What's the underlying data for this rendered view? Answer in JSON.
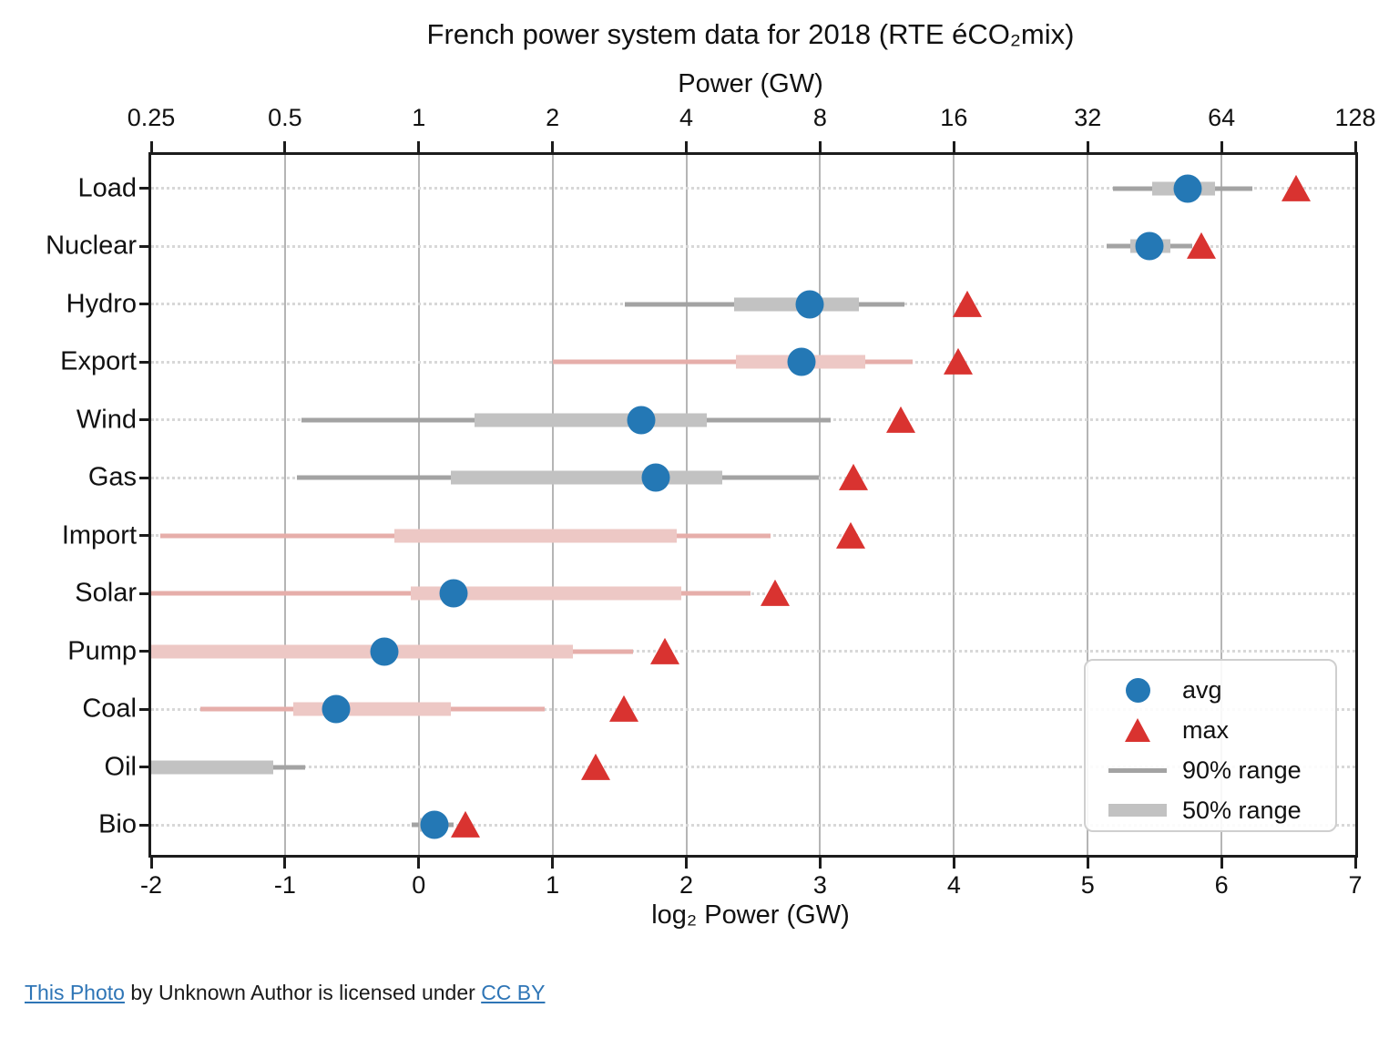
{
  "colors": {
    "avg_blue": "#2478b5",
    "max_red": "#d93330",
    "gray_thin": "#a3a3a3",
    "gray_thick": "#c2c2c2",
    "pink_thin": "#e6aeaa",
    "pink_thick": "#edc8c5",
    "grid_vertical": "#b5b5b5",
    "grid_horizontal_dotted": "#d8d8d8",
    "link_blue": "#2e75b6"
  },
  "chart_data": {
    "type": "scatter",
    "title": "French power system data for 2018 (RTE éCO₂mix)",
    "subtitle": "",
    "x_axis": {
      "label_top": "Power (GW)",
      "label_bottom": "log₂ Power (GW)",
      "scale": "log2",
      "min": -2,
      "max": 7,
      "tick_positions_log2": [
        -2,
        -1,
        0,
        1,
        2,
        3,
        4,
        5,
        6,
        7
      ],
      "tick_labels_bottom": [
        "-2",
        "-1",
        "0",
        "1",
        "2",
        "3",
        "4",
        "5",
        "6",
        "7"
      ],
      "tick_labels_top": [
        "0.25",
        "0.5",
        "1",
        "2",
        "4",
        "8",
        "16",
        "32",
        "64",
        "128"
      ],
      "grid": "vertical solid at integers, horizontal dotted per category"
    },
    "categories": [
      "Load",
      "Nuclear",
      "Hydro",
      "Export",
      "Wind",
      "Gas",
      "Import",
      "Solar",
      "Pump",
      "Coal",
      "Oil",
      "Bio"
    ],
    "rows": [
      {
        "category": "Load",
        "range_color": "gray",
        "p5": 5.19,
        "p25": 5.48,
        "p75": 5.95,
        "p95": 6.23,
        "avg": 5.75,
        "max": 6.56,
        "avg_gw": 53.8,
        "max_gw": 94.4
      },
      {
        "category": "Nuclear",
        "range_color": "gray",
        "p5": 5.14,
        "p25": 5.32,
        "p75": 5.62,
        "p95": 5.78,
        "avg": 5.46,
        "max": 5.85,
        "avg_gw": 44.0,
        "max_gw": 57.7
      },
      {
        "category": "Hydro",
        "range_color": "gray",
        "p5": 1.54,
        "p25": 2.36,
        "p75": 3.29,
        "p95": 3.63,
        "avg": 2.92,
        "max": 4.1,
        "avg_gw": 7.6,
        "max_gw": 17.1
      },
      {
        "category": "Export",
        "range_color": "pink",
        "p5": 1.0,
        "p25": 2.37,
        "p75": 3.34,
        "p95": 3.69,
        "avg": 2.86,
        "max": 4.03,
        "avg_gw": 7.3,
        "max_gw": 16.3
      },
      {
        "category": "Wind",
        "range_color": "gray",
        "p5": -0.88,
        "p25": 0.42,
        "p75": 2.15,
        "p95": 3.08,
        "avg": 1.66,
        "max": 3.6,
        "avg_gw": 3.2,
        "max_gw": 12.1
      },
      {
        "category": "Gas",
        "range_color": "gray",
        "p5": -0.91,
        "p25": 0.24,
        "p75": 2.27,
        "p95": 2.99,
        "avg": 1.77,
        "max": 3.25,
        "avg_gw": 3.4,
        "max_gw": 9.5
      },
      {
        "category": "Import",
        "range_color": "pink",
        "p5": -1.93,
        "p25": -0.18,
        "p75": 1.93,
        "p95": 2.63,
        "avg": null,
        "max": 3.23,
        "avg_gw": null,
        "max_gw": 9.4
      },
      {
        "category": "Solar",
        "range_color": "pink",
        "p5": -2.0,
        "p25": -0.06,
        "p75": 1.96,
        "p95": 2.48,
        "avg": 0.26,
        "max": 2.66,
        "avg_gw": 1.2,
        "max_gw": 6.3
      },
      {
        "category": "Pump",
        "range_color": "pink",
        "p5": -2.0,
        "p25": -2.0,
        "p75": 1.15,
        "p95": 1.6,
        "avg": -0.26,
        "max": 1.84,
        "avg_gw": 0.84,
        "max_gw": 3.6
      },
      {
        "category": "Coal",
        "range_color": "pink",
        "p5": -1.63,
        "p25": -0.94,
        "p75": 0.24,
        "p95": 0.94,
        "avg": -0.62,
        "max": 1.53,
        "avg_gw": 0.65,
        "max_gw": 2.9
      },
      {
        "category": "Oil",
        "range_color": "gray",
        "p5": -2.0,
        "p25": -2.0,
        "p75": -1.09,
        "p95": -0.85,
        "avg": null,
        "max": 1.32,
        "avg_gw": null,
        "max_gw": 2.5
      },
      {
        "category": "Bio",
        "range_color": "gray",
        "p5": -0.05,
        "p25": 0.0,
        "p75": 0.2,
        "p95": 0.26,
        "avg": 0.12,
        "max": 0.35,
        "avg_gw": 1.09,
        "max_gw": 1.27
      }
    ],
    "legend": [
      {
        "marker": "circle",
        "label": "avg"
      },
      {
        "marker": "triangle",
        "label": "max"
      },
      {
        "marker": "thin-line",
        "label": "90% range"
      },
      {
        "marker": "thick-line",
        "label": "50% range"
      }
    ],
    "legend_position": "lower right"
  },
  "footer": {
    "link1": "This Photo",
    "middle": " by Unknown Author is licensed under ",
    "link2": "CC BY"
  }
}
